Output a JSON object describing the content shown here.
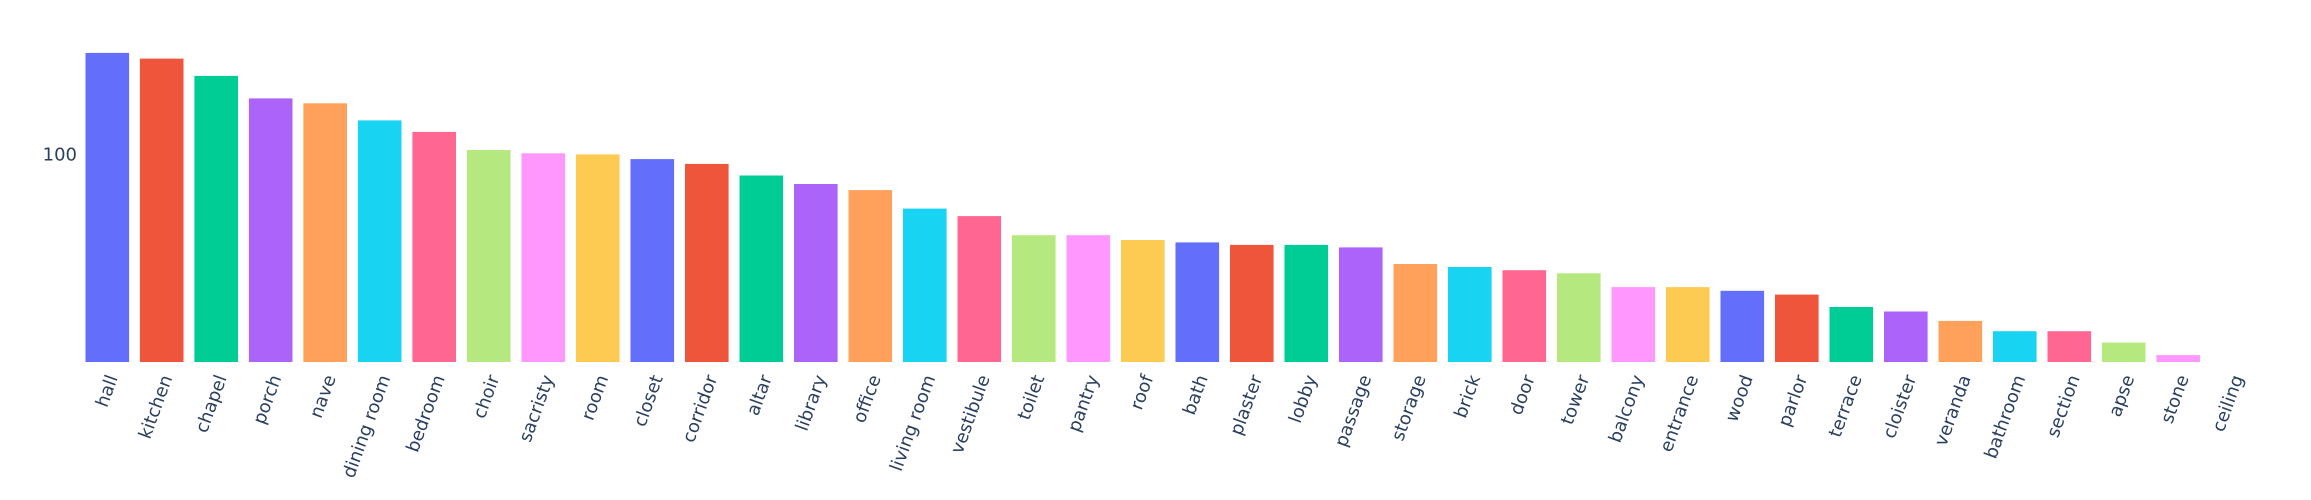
{
  "chart_data": {
    "type": "bar",
    "scale": "log",
    "ylim": [
      16,
      300
    ],
    "y_ticks": [
      100
    ],
    "title": "",
    "xlabel": "",
    "ylabel": "",
    "categories": [
      "hall",
      "kitchen",
      "chapel",
      "porch",
      "nave",
      "dining room",
      "bedroom",
      "choir",
      "sacristy",
      "room",
      "closet",
      "corridor",
      "altar",
      "library",
      "office",
      "living room",
      "vestibule",
      "toilet",
      "pantry",
      "roof",
      "bath",
      "plaster",
      "lobby",
      "passage",
      "storage",
      "brick",
      "door",
      "tower",
      "balcony",
      "entrance",
      "wood",
      "parlor",
      "terrace",
      "cloister",
      "veranda",
      "bathroom",
      "section",
      "apse",
      "stone",
      "ceiling"
    ],
    "values": [
      245,
      233,
      200,
      164,
      157,
      135,
      122,
      104,
      101,
      100,
      96,
      92,
      83,
      77,
      73,
      62,
      58,
      49,
      49,
      47,
      46,
      45,
      45,
      44,
      38,
      37,
      36,
      35,
      31,
      31,
      30,
      29,
      26,
      25,
      23,
      21,
      21,
      19,
      17,
      16
    ],
    "colors": [
      "#636efa",
      "#EF553B",
      "#00cc96",
      "#ab63fa",
      "#FFA15A",
      "#19d3f3",
      "#FF6692",
      "#B6E880",
      "#FF97FF",
      "#FECB52"
    ]
  }
}
